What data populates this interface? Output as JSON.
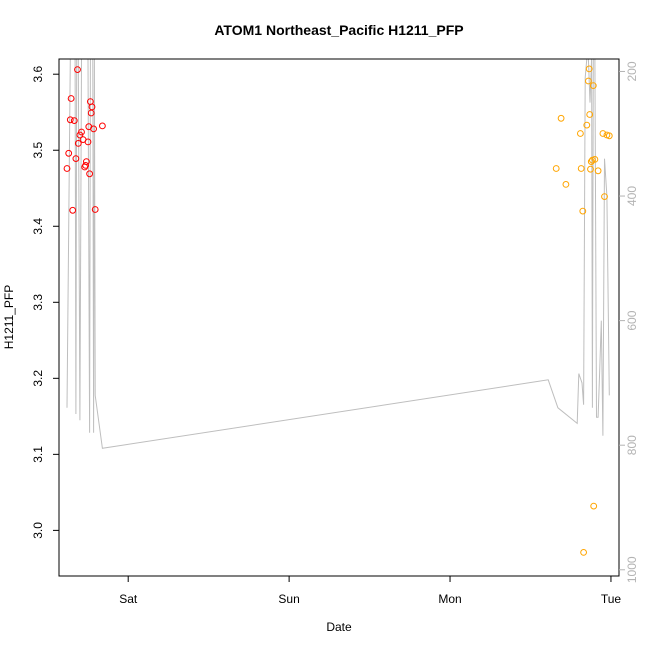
{
  "chart_data": {
    "type": "scatter",
    "title": "ATOM1 Northeast_Pacific H1211_PFP",
    "xlabel": "Date",
    "ylabel": "H1211_PFP",
    "x_ticks": [
      {
        "label": "Sat",
        "day": 1.0
      },
      {
        "label": "Sun",
        "day": 2.0
      },
      {
        "label": "Mon",
        "day": 3.0
      },
      {
        "label": "Tue",
        "day": 4.0
      }
    ],
    "xlim_day": [
      0.57,
      4.05
    ],
    "ylim": [
      2.94,
      3.62
    ],
    "y_ticks": [
      3.0,
      3.1,
      3.2,
      3.3,
      3.4,
      3.5,
      3.6
    ],
    "right_axis": {
      "ylim": [
        1010,
        180
      ],
      "ticks": [
        200,
        400,
        600,
        800,
        1000
      ],
      "color": "#b3b3b3"
    },
    "colors": {
      "series_1": "#ff0000",
      "series_2": "#ffa500",
      "pressure_line": "#bebebe"
    },
    "series": [
      {
        "color": "#ff0000",
        "points": [
          [
            0.62,
            3.476
          ],
          [
            0.63,
            3.496
          ],
          [
            0.64,
            3.54
          ],
          [
            0.645,
            3.568
          ],
          [
            0.655,
            3.421
          ],
          [
            0.665,
            3.539
          ],
          [
            0.675,
            3.489
          ],
          [
            0.685,
            3.606
          ],
          [
            0.69,
            3.509
          ],
          [
            0.7,
            3.52
          ],
          [
            0.71,
            3.524
          ],
          [
            0.72,
            3.514
          ],
          [
            0.73,
            3.478
          ],
          [
            0.735,
            3.48
          ],
          [
            0.74,
            3.485
          ],
          [
            0.75,
            3.511
          ],
          [
            0.755,
            3.531
          ],
          [
            0.76,
            3.469
          ],
          [
            0.765,
            3.564
          ],
          [
            0.77,
            3.549
          ],
          [
            0.775,
            3.557
          ],
          [
            0.785,
            3.528
          ],
          [
            0.795,
            3.422
          ],
          [
            0.84,
            3.532
          ]
        ]
      },
      {
        "color": "#ffa500",
        "points": [
          [
            3.66,
            3.476
          ],
          [
            3.69,
            3.542
          ],
          [
            3.72,
            3.455
          ],
          [
            3.81,
            3.522
          ],
          [
            3.815,
            3.476
          ],
          [
            3.825,
            3.42
          ],
          [
            3.83,
            2.971
          ],
          [
            3.85,
            3.533
          ],
          [
            3.86,
            3.591
          ],
          [
            3.865,
            3.607
          ],
          [
            3.868,
            3.547
          ],
          [
            3.873,
            3.475
          ],
          [
            3.878,
            3.485
          ],
          [
            3.885,
            3.487
          ],
          [
            3.89,
            3.585
          ],
          [
            3.893,
            3.032
          ],
          [
            3.9,
            3.488
          ],
          [
            3.92,
            3.473
          ],
          [
            3.95,
            3.522
          ],
          [
            3.96,
            3.439
          ],
          [
            3.975,
            3.52
          ],
          [
            3.99,
            3.519
          ]
        ]
      }
    ],
    "pressure_line": [
      [
        0.62,
        740
      ],
      [
        0.64,
        180
      ],
      [
        0.67,
        180
      ],
      [
        0.675,
        750
      ],
      [
        0.68,
        180
      ],
      [
        0.69,
        180
      ],
      [
        0.7,
        760
      ],
      [
        0.71,
        180
      ],
      [
        0.72,
        180
      ],
      [
        0.73,
        180
      ],
      [
        0.74,
        180
      ],
      [
        0.75,
        180
      ],
      [
        0.76,
        780
      ],
      [
        0.765,
        180
      ],
      [
        0.77,
        180
      ],
      [
        0.78,
        180
      ],
      [
        0.785,
        780
      ],
      [
        0.79,
        180
      ],
      [
        0.795,
        720
      ],
      [
        0.84,
        805
      ],
      [
        3.61,
        695
      ],
      [
        3.67,
        740
      ],
      [
        3.79,
        765
      ],
      [
        3.8,
        685
      ],
      [
        3.82,
        700
      ],
      [
        3.83,
        735
      ],
      [
        3.84,
        210
      ],
      [
        3.85,
        180
      ],
      [
        3.86,
        180
      ],
      [
        3.87,
        250
      ],
      [
        3.88,
        180
      ],
      [
        3.885,
        740
      ],
      [
        3.89,
        180
      ],
      [
        3.9,
        180
      ],
      [
        3.91,
        755
      ],
      [
        3.92,
        755
      ],
      [
        3.93,
        680
      ],
      [
        3.94,
        600
      ],
      [
        3.95,
        785
      ],
      [
        3.96,
        340
      ],
      [
        3.975,
        400
      ],
      [
        3.99,
        720
      ]
    ]
  }
}
